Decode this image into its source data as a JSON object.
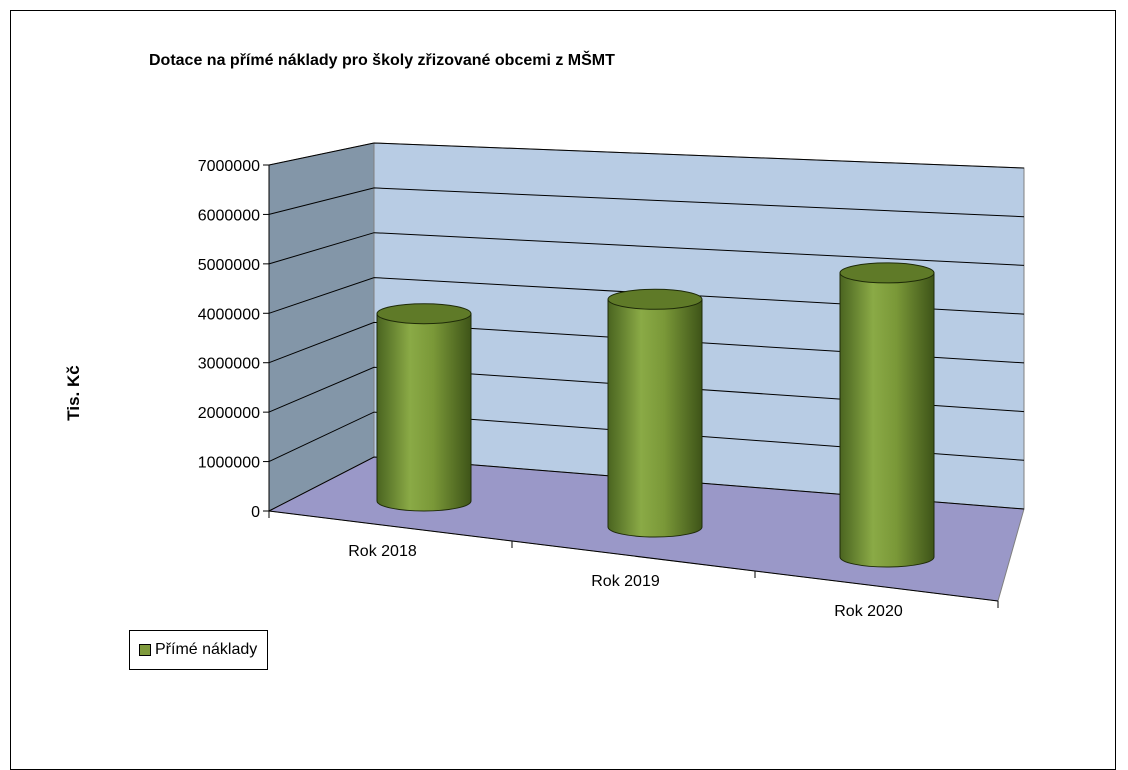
{
  "chart_data": {
    "type": "bar",
    "subtype": "3d-cylinder",
    "title": "Dotace na přímé náklady pro školy zřizované obcemi z MŠMT",
    "xlabel": "",
    "ylabel": "Tis. Kč",
    "categories": [
      "Rok 2018",
      "Rok 2019",
      "Rok 2020"
    ],
    "series": [
      {
        "name": "Přímé náklady",
        "values": [
          4400000,
          4950000,
          5850000
        ]
      }
    ],
    "ylim": [
      0,
      7000000
    ],
    "yticks": [
      "0",
      "1000000",
      "2000000",
      "3000000",
      "4000000",
      "5000000",
      "6000000",
      "7000000"
    ],
    "grid": true,
    "legend": "bottom-left",
    "colors": {
      "series": "#7f9a3c",
      "back_wall": "#b8cce4",
      "side_wall": "#8396a8",
      "floor": "#9a98c8"
    }
  }
}
